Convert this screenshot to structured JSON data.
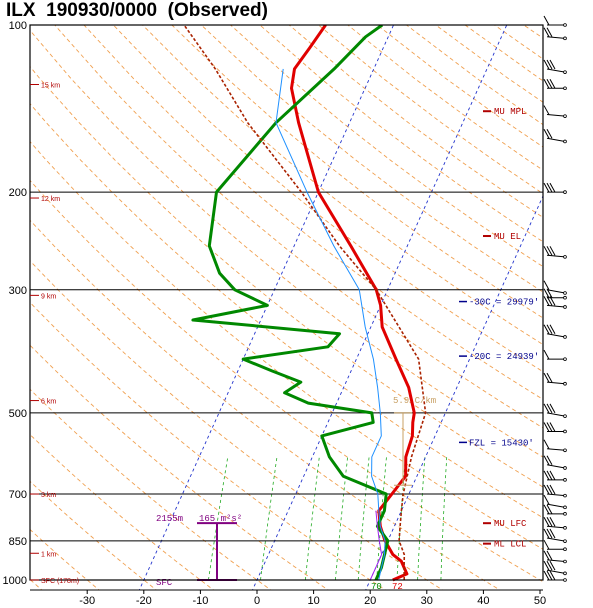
{
  "header": {
    "station": "ILX",
    "time": "190930/0000",
    "kind": "(Observed)"
  },
  "chart_data": {
    "type": "line",
    "title": "ILX 190930/0000 (Observed)",
    "y_scale": "log",
    "pressure_ticks": [
      1000,
      850,
      700,
      500,
      300,
      200,
      100
    ],
    "temperature_ticks": [
      -30,
      -20,
      -10,
      0,
      10,
      20,
      30,
      40,
      50
    ],
    "xlim": [
      -40,
      50
    ],
    "ylim": [
      1050,
      100
    ],
    "height_labels": [
      {
        "label": "SFC (178m)",
        "p": 1000
      },
      {
        "label": "1 km",
        "p": 895
      },
      {
        "label": "3 km",
        "p": 700
      },
      {
        "label": "6 km",
        "p": 475
      },
      {
        "label": "9 km",
        "p": 307
      },
      {
        "label": "12 km",
        "p": 205
      },
      {
        "label": "15 km",
        "p": 128
      }
    ],
    "series": [
      {
        "id": "temperature",
        "color": "#e00000",
        "points": [
          [
            1000,
            24
          ],
          [
            975,
            26
          ],
          [
            950,
            25
          ],
          [
            925,
            24
          ],
          [
            900,
            22
          ],
          [
            850,
            19.5
          ],
          [
            800,
            17.5
          ],
          [
            750,
            16
          ],
          [
            700,
            17
          ],
          [
            650,
            18
          ],
          [
            600,
            16.5
          ],
          [
            550,
            16
          ],
          [
            520,
            15
          ],
          [
            500,
            14.5
          ],
          [
            450,
            11.5
          ],
          [
            400,
            7
          ],
          [
            350,
            2
          ],
          [
            320,
            0
          ],
          [
            300,
            -2
          ],
          [
            250,
            -10
          ],
          [
            200,
            -20
          ],
          [
            150,
            -29
          ],
          [
            130,
            -33
          ],
          [
            120,
            -34
          ],
          [
            110,
            -33
          ],
          [
            100,
            -32
          ]
        ]
      },
      {
        "id": "dewpoint",
        "color": "#008800",
        "points": [
          [
            1000,
            21
          ],
          [
            950,
            21
          ],
          [
            900,
            20.5
          ],
          [
            850,
            20
          ],
          [
            800,
            17
          ],
          [
            750,
            17
          ],
          [
            700,
            16
          ],
          [
            650,
            7
          ],
          [
            600,
            3
          ],
          [
            550,
            0
          ],
          [
            520,
            8
          ],
          [
            500,
            7
          ],
          [
            480,
            -5
          ],
          [
            460,
            -10
          ],
          [
            440,
            -8
          ],
          [
            420,
            -14
          ],
          [
            400,
            -20
          ],
          [
            380,
            -6
          ],
          [
            360,
            -5
          ],
          [
            340,
            -32
          ],
          [
            320,
            -20
          ],
          [
            300,
            -27
          ],
          [
            280,
            -31
          ],
          [
            250,
            -35
          ],
          [
            200,
            -38
          ],
          [
            150,
            -33
          ],
          [
            120,
            -27
          ],
          [
            105,
            -24
          ],
          [
            100,
            -22
          ]
        ]
      },
      {
        "id": "mu-parcel",
        "color": "#aa2200",
        "points": [
          [
            1000,
            26
          ],
          [
            950,
            25
          ],
          [
            900,
            24
          ],
          [
            850,
            22
          ],
          [
            800,
            21
          ],
          [
            750,
            20
          ],
          [
            700,
            19
          ],
          [
            600,
            17.5
          ],
          [
            500,
            16.5
          ],
          [
            400,
            11
          ],
          [
            300,
            -2
          ],
          [
            250,
            -12
          ],
          [
            200,
            -23
          ],
          [
            150,
            -38
          ],
          [
            120,
            -48
          ],
          [
            100,
            -57
          ]
        ]
      },
      {
        "id": "wetbulb",
        "color": "#1e90ff",
        "points": [
          [
            1000,
            21.5
          ],
          [
            950,
            21
          ],
          [
            900,
            20.5
          ],
          [
            850,
            19.5
          ],
          [
            800,
            17.5
          ],
          [
            750,
            16
          ],
          [
            700,
            14.5
          ],
          [
            650,
            12
          ],
          [
            600,
            10.5
          ],
          [
            550,
            10.5
          ],
          [
            500,
            8.5
          ],
          [
            450,
            6
          ],
          [
            400,
            3
          ],
          [
            350,
            -1
          ],
          [
            300,
            -5
          ],
          [
            250,
            -13
          ],
          [
            200,
            -22
          ],
          [
            150,
            -33
          ],
          [
            120,
            -36
          ]
        ]
      },
      {
        "id": "virtual-temperature",
        "color": "#a020f0",
        "points": [
          [
            1000,
            20
          ],
          [
            950,
            20
          ],
          [
            900,
            20
          ],
          [
            850,
            18.5
          ],
          [
            800,
            17
          ],
          [
            750,
            15.5
          ]
        ]
      }
    ],
    "wind_barbs": [
      {
        "p": 100,
        "barb": "tall-100"
      },
      {
        "p": 120,
        "barb": "tall-120"
      },
      {
        "p": 200,
        "barb": "tall-200"
      }
    ],
    "annotations": {
      "parcel_levels": [
        {
          "label": "MU MPL",
          "p": 143,
          "color": "#b00000"
        },
        {
          "label": "MU EL",
          "p": 240,
          "color": "#b00000"
        },
        {
          "label": "MU LFC",
          "p": 790,
          "color": "#b00000"
        },
        {
          "label": "ML LCL",
          "p": 860,
          "color": "#b00000"
        }
      ],
      "temperature_levels": [
        {
          "label": "-30C = 29979'",
          "p": 315,
          "color": "#00008b"
        },
        {
          "label": "-20C = 24939'",
          "p": 395,
          "color": "#00008b"
        },
        {
          "label": "FZL = 15430'",
          "p": 565,
          "color": "#00008b"
        }
      ],
      "lapse_rate": {
        "label": "5.9 C/km",
        "p_top": 500,
        "p_bottom": 675,
        "color": "#c8a064"
      },
      "effective_inflow": {
        "height": "2155m",
        "srh": "165 m²s²",
        "p_top": 790,
        "p_bottom": 1000,
        "color": "#800080"
      },
      "surface_label": "SFC",
      "surface_values": {
        "dewpoint": "70",
        "temperature": "72"
      }
    }
  }
}
